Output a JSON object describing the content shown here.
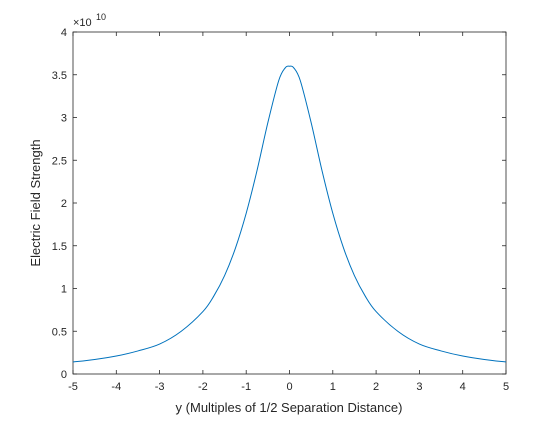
{
  "chart_data": {
    "type": "line",
    "xlabel": "y (Multiples of 1/2 Separation Distance)",
    "ylabel": "Electric Field Strength",
    "xlim": [
      -5,
      5
    ],
    "ylim": [
      0,
      4
    ],
    "x_ticks": [
      "-5",
      "-4",
      "-3",
      "-2",
      "-1",
      "0",
      "1",
      "2",
      "3",
      "4",
      "5"
    ],
    "y_ticks": [
      "0",
      "0.5",
      "1",
      "1.5",
      "2",
      "2.5",
      "3",
      "3.5",
      "4"
    ],
    "exponent_multiplier": "×10",
    "exponent_power": "10",
    "series": [
      {
        "color": "#0072bd",
        "x": [
          -5,
          -4.5,
          -4,
          -3.5,
          -3,
          -2.5,
          -2,
          -1.75,
          -1.5,
          -1.25,
          -1,
          -0.75,
          -0.5,
          -0.25,
          -0.1,
          0,
          0.1,
          0.25,
          0.5,
          0.75,
          1,
          1.25,
          1.5,
          1.75,
          2,
          2.5,
          3,
          3.5,
          4,
          4.5,
          5
        ],
        "y": [
          0.14,
          0.17,
          0.21,
          0.27,
          0.35,
          0.5,
          0.73,
          0.91,
          1.15,
          1.47,
          1.88,
          2.38,
          2.94,
          3.43,
          3.58,
          3.6,
          3.58,
          3.43,
          2.94,
          2.38,
          1.88,
          1.47,
          1.15,
          0.91,
          0.73,
          0.5,
          0.35,
          0.27,
          0.21,
          0.17,
          0.14
        ]
      }
    ]
  },
  "colors": {
    "axis": "#262626",
    "line": "#0072bd",
    "background": "#ffffff"
  }
}
